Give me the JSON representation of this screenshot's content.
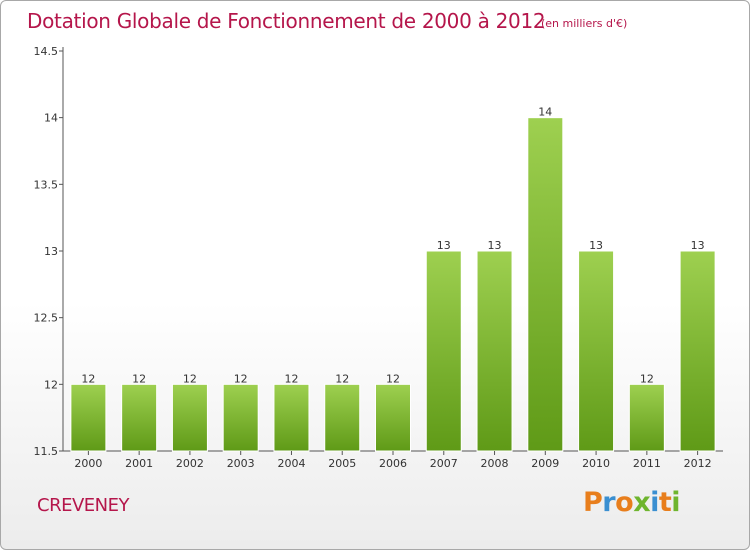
{
  "title": "Dotation Globale de Fonctionnement de 2000 à 2012",
  "unit_note": "(en milliers d'€)",
  "place_name": "CREVENEY",
  "logo": {
    "letters": [
      "P",
      "r",
      "o",
      "x",
      "i",
      "t",
      "i"
    ],
    "colors": [
      "#e87e1c",
      "#3a8fd1",
      "#e87e1c",
      "#6eb52e",
      "#3a8fd1",
      "#e87e1c",
      "#6eb52e"
    ]
  },
  "colors": {
    "bar_top": "#9ed050",
    "bar_bottom": "#5f9a17",
    "title": "#b5164b"
  },
  "chart_data": {
    "type": "bar",
    "categories": [
      "2000",
      "2001",
      "2002",
      "2003",
      "2004",
      "2005",
      "2006",
      "2007",
      "2008",
      "2009",
      "2010",
      "2011",
      "2012"
    ],
    "values": [
      12,
      12,
      12,
      12,
      12,
      12,
      12,
      13,
      13,
      14,
      13,
      12,
      13
    ],
    "data_labels": [
      "12",
      "12",
      "12",
      "12",
      "12",
      "12",
      "12",
      "13",
      "13",
      "14",
      "13",
      "12",
      "13"
    ],
    "yticks": [
      "11.5",
      "12",
      "12.5",
      "13",
      "13.5",
      "14",
      "14.5"
    ],
    "ylim": [
      11.5,
      14.5
    ],
    "grid": false,
    "legend": "none"
  }
}
